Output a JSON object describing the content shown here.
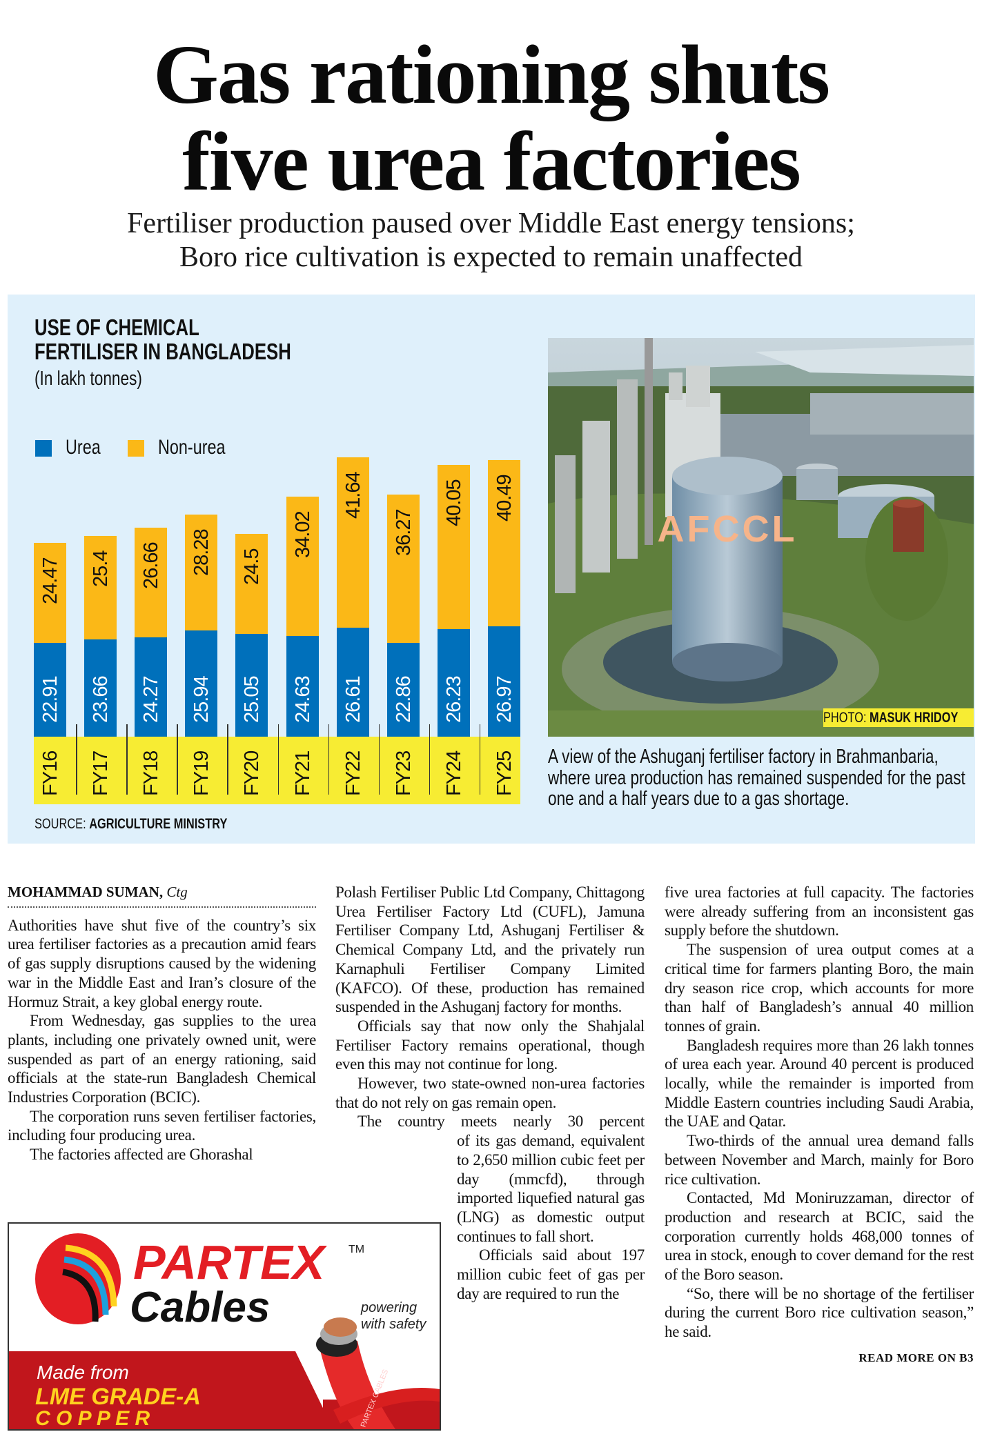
{
  "headline": {
    "lines": [
      "Gas rationing shuts",
      "five urea factories"
    ],
    "subhead_lines": [
      "Fertiliser production paused over Middle East energy tensions;",
      "Boro rice cultivation is expected to remain unaffected"
    ]
  },
  "chart_data": {
    "type": "bar",
    "stacked": true,
    "orientation": "vertical",
    "title": "USE OF CHEMICAL FERTILISER IN BANGLADESH",
    "title_lines": [
      "USE OF CHEMICAL",
      "FERTILISER IN BANGLADESH"
    ],
    "subtitle": "(In lakh tonnes)",
    "legend_position": "top-left",
    "grid": false,
    "categories": [
      "FY16",
      "FY17",
      "FY18",
      "FY19",
      "FY20",
      "FY21",
      "FY22",
      "FY23",
      "FY24",
      "FY25"
    ],
    "series": [
      {
        "name": "Urea",
        "color": "#0070bb",
        "values": [
          22.91,
          23.66,
          24.27,
          25.94,
          25.05,
          24.63,
          26.61,
          22.86,
          26.23,
          26.97
        ]
      },
      {
        "name": "Non-urea",
        "color": "#fbb817",
        "values": [
          24.47,
          25.4,
          26.66,
          28.28,
          24.5,
          34.02,
          41.64,
          36.27,
          40.05,
          40.49
        ]
      }
    ],
    "source_label": "SOURCE:",
    "source": "AGRICULTURE MINISTRY"
  },
  "photo": {
    "tank_label": "AFCCL",
    "credit_label": "PHOTO:",
    "credit_name": "MASUK HRIDOY",
    "caption": "A view of the Ashuganj fertiliser factory in Brahmanbaria, where urea production has remained suspended for the past one and a half years due to a gas shortage."
  },
  "article": {
    "byline_name": "MOHAMMAD SUMAN,",
    "byline_place": "Ctg",
    "col1": [
      "Authorities have shut five of the country’s six urea fertiliser factories as a precaution amid fears of gas supply disruptions caused by the widening war in the Middle East and Iran’s closure of the Hormuz Strait, a key global energy route.",
      "From Wednesday, gas supplies to the urea plants, including one privately owned unit, were suspended as part of an energy rationing, said officials at the state-run Bangladesh Chemical Industries Corporation (BCIC).",
      "The corporation runs seven fertiliser factories, including four producing urea.",
      "The factories affected are Ghorashal"
    ],
    "col2": [
      "Polash Fertiliser Public Ltd Company, Chittagong Urea Fertiliser Factory Ltd (CUFL), Jamuna Fertiliser Company Ltd, Ashuganj Fertiliser & Chemical Company Ltd, and the privately run Karnaphuli Fertiliser Company Limited (KAFCO). Of these, production has remained suspended in the Ashuganj factory for months.",
      "Officials say that now only the Shahjalal Fertiliser Factory remains operational, though even this may not continue for long.",
      "However, two state-owned non-urea factories that do not rely on gas remain open."
    ],
    "col2_wrap_first_line": "The country meets nearly 30 percent",
    "col2_wrap_rest": "of its gas demand, equivalent to 2,650 million cubic feet per day (mmcfd), through imported liquefied natural gas (LNG) as domestic output continues to fall short.",
    "col2_wrap_p2": "Officials said about 197 million cubic feet of gas per day are required to run the",
    "col3": [
      "five urea factories at full capacity. The factories were already suffering from an inconsistent gas supply before the shutdown.",
      "The suspension of urea output comes at a critical time for farmers planting Boro, the main dry season rice crop, which accounts for more than half of Bangladesh’s annual 40 million tonnes of grain.",
      "Bangladesh requires more than 26 lakh tonnes of urea each year. Around 40 percent is produced locally, while the remainder is imported from Middle Eastern countries including Saudi Arabia, the UAE and Qatar.",
      "Two-thirds of the annual urea demand falls between November and March, mainly for Boro rice cultivation.",
      "Contacted, Md Moniruzzaman, director of production and research at BCIC, said the corporation currently holds 468,000 tonnes of urea in stock, enough to cover demand for the rest of the Boro season.",
      "“So, there will be no shortage of the fertiliser during the current Boro rice cultivation season,” he said."
    ],
    "read_more": "READ MORE ON B3"
  },
  "ad": {
    "brand": "PARTEX",
    "brand_sub": "Cables",
    "tm": "TM",
    "tagline_1": "powering",
    "tagline_2": "with safety",
    "made_from": "Made from",
    "grade": "LME GRADE-A",
    "copper": "C O P P E R",
    "cable_print": "PARTEX CABLES",
    "colors": {
      "red": "#e31e24",
      "dark_red": "#c1161c",
      "yellow": "#ffd21f"
    }
  }
}
